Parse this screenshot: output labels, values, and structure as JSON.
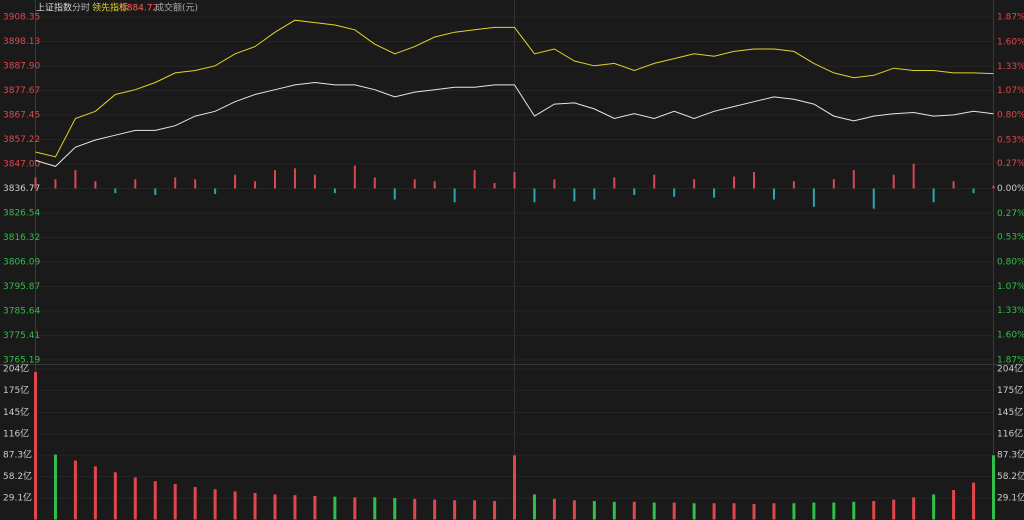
{
  "chart_data": [
    {
      "type": "line",
      "title": "上证指数",
      "subtitle": "分时",
      "x": [
        0,
        5,
        10,
        15,
        20,
        25,
        30,
        35,
        40,
        45,
        50,
        55,
        60,
        65,
        70,
        75,
        80,
        85,
        90,
        95,
        100,
        105,
        110,
        115,
        120,
        125,
        130,
        135,
        140,
        145,
        150,
        155,
        160,
        165,
        170,
        175,
        180,
        185,
        190,
        195,
        200,
        205,
        210,
        215,
        220,
        225,
        230,
        235,
        240
      ],
      "xlim": [
        0,
        240
      ],
      "ylim": [
        3765.19,
        3908.35
      ],
      "yticks": [
        3908.35,
        3898.13,
        {
          "value": 3887.9,
          "label": "3887.90"
        },
        3877.67,
        3867.45,
        3857.22,
        {
          "value": 3847,
          "label": "3847.00"
        },
        3836.77,
        3826.54,
        3816.32,
        3806.09,
        3795.87,
        3785.64,
        3775.41,
        3765.19
      ],
      "y2lim": [
        -1.87,
        1.87
      ],
      "y2ticks": [
        {
          "value": 1.87,
          "label": "1.87%"
        },
        {
          "value": 1.6,
          "label": "1.60%"
        },
        {
          "value": 1.33,
          "label": "1.33%"
        },
        {
          "value": 1.07,
          "label": "1.07%"
        },
        {
          "value": 0.8,
          "label": "0.80%"
        },
        {
          "value": 0.53,
          "label": "0.53%"
        },
        {
          "value": 0.27,
          "label": "0.27%"
        },
        {
          "value": 0,
          "label": "0.00%"
        },
        {
          "value": -0.27,
          "label": "0.27%"
        },
        {
          "value": -0.53,
          "label": "0.53%"
        },
        {
          "value": -0.8,
          "label": "0.80%"
        },
        {
          "value": -1.07,
          "label": "1.07%"
        },
        {
          "value": -1.33,
          "label": "1.33%"
        },
        {
          "value": -1.6,
          "label": "1.60%"
        },
        {
          "value": -1.87,
          "label": "1.87%"
        }
      ],
      "grid": true,
      "up_color": "#e0474c",
      "down_color": "#2fbf4a",
      "series": [
        {
          "color": "#e6e6e6",
          "values": [
            3848.5,
            3846,
            3854,
            3857,
            3859,
            3861,
            3861,
            3863,
            3867,
            3869,
            3873,
            3876,
            3878,
            3880,
            3881,
            3880,
            3880,
            3878,
            3875,
            3877,
            3878,
            3879,
            3879,
            3880,
            3880,
            3867,
            3872,
            3872.5,
            3870,
            3866,
            3868,
            3866,
            3869,
            3866,
            3869,
            3871,
            3873,
            3875,
            3874,
            3872,
            3867,
            3865,
            3867,
            3868,
            3868.5,
            3867,
            3867.5,
            3869,
            3868
          ]
        },
        {
          "name": "领先指标",
          "color": "#e3d22a",
          "values": [
            3852,
            3850,
            3866,
            3869,
            3876,
            3878,
            3881,
            3885,
            3886,
            3888,
            3893,
            3896,
            3902,
            3907,
            3906,
            3905,
            3903,
            3897,
            3893,
            3896,
            3900,
            3902,
            3903,
            3904,
            3904,
            3893,
            3895,
            3890,
            3888,
            3889,
            3886,
            3889,
            3891,
            3893,
            3892,
            3894,
            3895,
            3895,
            3894,
            3889,
            3885,
            3883,
            3884,
            3887,
            3886,
            3886,
            3885,
            3885,
            3884.72
          ]
        },
        {
          "type": "bar",
          "axis": "y2",
          "up_color": "#d9474f",
          "down_color": "#2aa6b0",
          "values": [
            0.12,
            0.1,
            0.2,
            0.08,
            -0.05,
            0.1,
            -0.07,
            0.12,
            0.1,
            -0.06,
            0.15,
            0.08,
            0.2,
            0.22,
            0.15,
            -0.05,
            0.25,
            0.12,
            -0.12,
            0.1,
            0.08,
            -0.15,
            0.2,
            0.06,
            0.18,
            -0.15,
            0.1,
            -0.14,
            -0.12,
            0.12,
            -0.07,
            0.15,
            -0.09,
            0.1,
            -0.1,
            0.13,
            0.18,
            -0.12,
            0.08,
            -0.2,
            0.1,
            0.2,
            -0.22,
            0.15,
            0.27,
            -0.15,
            0.08,
            -0.05,
            0.03
          ]
        }
      ]
    },
    {
      "type": "bar",
      "title": "成交额(元)",
      "x": [
        0,
        5,
        10,
        15,
        20,
        25,
        30,
        35,
        40,
        45,
        50,
        55,
        60,
        65,
        70,
        75,
        80,
        85,
        90,
        95,
        100,
        105,
        110,
        115,
        120,
        125,
        130,
        135,
        140,
        145,
        150,
        155,
        160,
        165,
        170,
        175,
        180,
        185,
        190,
        195,
        200,
        205,
        210,
        215,
        220,
        225,
        230,
        235,
        240
      ],
      "xlim": [
        0,
        240
      ],
      "ylim": [
        0,
        204
      ],
      "yticks": [
        {
          "value": 204,
          "label": "204亿"
        },
        {
          "value": 175,
          "label": "175亿"
        },
        {
          "value": 145,
          "label": "145亿"
        },
        {
          "value": 116,
          "label": "116亿"
        },
        {
          "value": 87.3,
          "label": "87.3亿"
        },
        {
          "value": 58.2,
          "label": "58.2亿"
        },
        {
          "value": 29.1,
          "label": "29.1亿"
        }
      ],
      "up_color": "#e0474c",
      "down_color": "#2fbf4a",
      "values": [
        200,
        88,
        80,
        72,
        64,
        57,
        52,
        48,
        44,
        41,
        38,
        36,
        34,
        33,
        32,
        31,
        30,
        30,
        29,
        28,
        27,
        26,
        26,
        25,
        87,
        34,
        28,
        26,
        25,
        24,
        24,
        23,
        23,
        22,
        22,
        22,
        21,
        22,
        22,
        23,
        23,
        24,
        25,
        27,
        30,
        34,
        40,
        50,
        87
      ]
    }
  ]
}
